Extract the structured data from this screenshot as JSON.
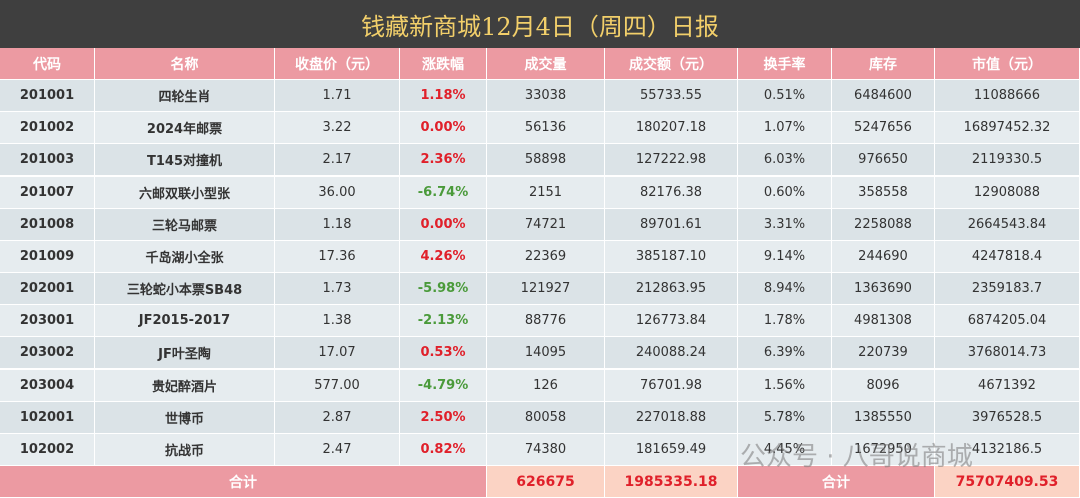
{
  "header": {
    "title": "钱藏新商城12月4日（周四）日报"
  },
  "table": {
    "columns": [
      "代码",
      "名称",
      "收盘价（元）",
      "涨跌幅",
      "成交量",
      "成交额（元）",
      "换手率",
      "库存",
      "市值（元）"
    ],
    "rows": [
      [
        "201001",
        "四轮生肖",
        "1.71",
        "1.18%",
        "33038",
        "55733.55",
        "0.51%",
        "6484600",
        "11088666"
      ],
      [
        "201002",
        "2024年邮票",
        "3.22",
        "0.00%",
        "56136",
        "180207.18",
        "1.07%",
        "5247656",
        "16897452.32"
      ],
      [
        "201003",
        "T145对撞机",
        "2.17",
        "2.36%",
        "58898",
        "127222.98",
        "6.03%",
        "976650",
        "2119330.5"
      ],
      [
        "201007",
        "六邮双联小型张",
        "36.00",
        "-6.74%",
        "2151",
        "82176.38",
        "0.60%",
        "358558",
        "12908088"
      ],
      [
        "201008",
        "三轮马邮票",
        "1.18",
        "0.00%",
        "74721",
        "89701.61",
        "3.31%",
        "2258088",
        "2664543.84"
      ],
      [
        "201009",
        "千岛湖小全张",
        "17.36",
        "4.26%",
        "22369",
        "385187.10",
        "9.14%",
        "244690",
        "4247818.4"
      ],
      [
        "202001",
        "三轮蛇小本票SB48",
        "1.73",
        "-5.98%",
        "121927",
        "212863.95",
        "8.94%",
        "1363690",
        "2359183.7"
      ],
      [
        "203001",
        "JF2015-2017",
        "1.38",
        "-2.13%",
        "88776",
        "126773.84",
        "1.78%",
        "4981308",
        "6874205.04"
      ],
      [
        "203002",
        "JF叶圣陶",
        "17.07",
        "0.53%",
        "14095",
        "240088.24",
        "6.39%",
        "220739",
        "3768014.73"
      ],
      [
        "203004",
        "贵妃醉酒片",
        "577.00",
        "-4.79%",
        "126",
        "76701.98",
        "1.56%",
        "8096",
        "4671392"
      ],
      [
        "102001",
        "世博币",
        "2.87",
        "2.50%",
        "80058",
        "227018.88",
        "5.78%",
        "1385550",
        "3976528.5"
      ],
      [
        "102002",
        "抗战币",
        "2.47",
        "0.82%",
        "74380",
        "181659.49",
        "4.45%",
        "1672950",
        "4132186.5"
      ]
    ],
    "footer": {
      "label1": "合计",
      "volume": "626675",
      "amount": "1985335.18",
      "label2": "合计",
      "market_value": "75707409.53"
    }
  },
  "watermark": "公众号 · 八哥说商城"
}
